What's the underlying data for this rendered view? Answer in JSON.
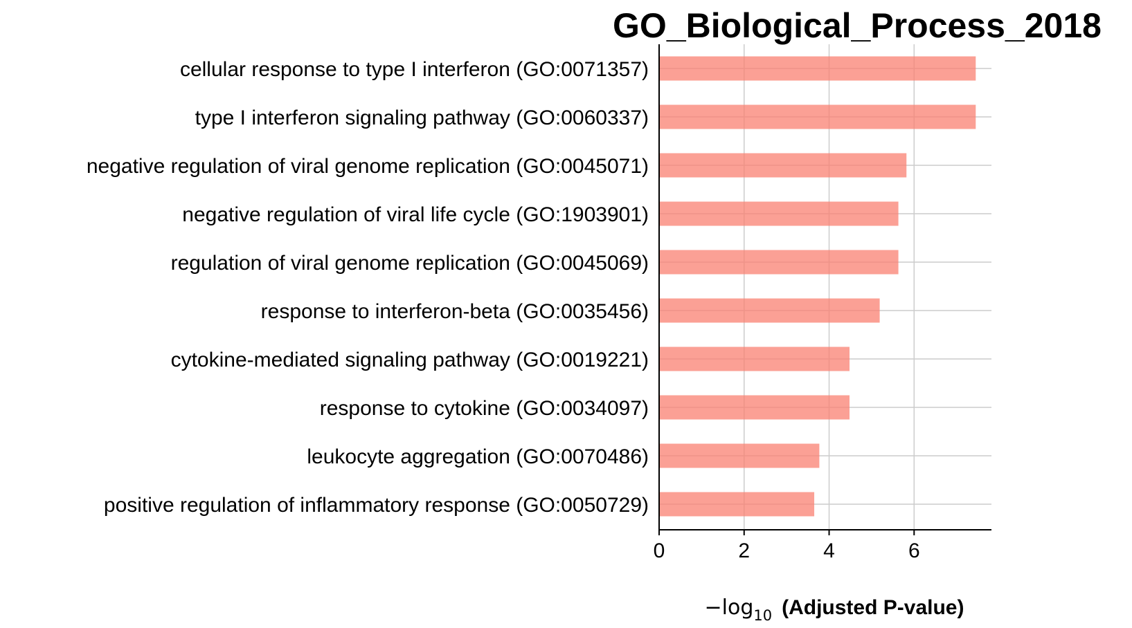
{
  "chart_data": {
    "type": "bar",
    "orientation": "horizontal",
    "title": "GO_Biological_Process_2018",
    "xlabel": {
      "prefix": "−log",
      "subscript": "10",
      "main": "(Adjusted P-value)"
    },
    "ylabel": "",
    "categories": [
      "cellular response to type I interferon (GO:0071357)",
      "type I interferon signaling pathway (GO:0060337)",
      "negative regulation of viral genome replication (GO:0045071)",
      "negative regulation of viral life cycle (GO:1903901)",
      "regulation of viral genome replication (GO:0045069)",
      "response to interferon-beta (GO:0035456)",
      "cytokine-mediated signaling pathway (GO:0019221)",
      "response to cytokine (GO:0034097)",
      "leukocyte aggregation (GO:0070486)",
      "positive regulation of inflammatory response (GO:0050729)"
    ],
    "values": [
      7.45,
      7.45,
      5.82,
      5.63,
      5.63,
      5.19,
      4.48,
      4.48,
      3.77,
      3.65
    ],
    "xlim": [
      0,
      7.82
    ],
    "xticks": [
      0,
      2,
      4,
      6
    ],
    "bar_color": "#fa8072",
    "bar_opacity": 0.75,
    "grid": true,
    "grid_color": "#cccccc"
  }
}
